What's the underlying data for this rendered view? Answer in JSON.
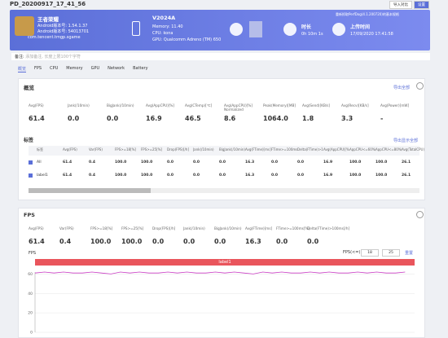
{
  "window": {
    "title": "PD_20200917_17_41_56",
    "buttons": [
      "导入对比",
      "设置"
    ]
  },
  "header": {
    "app_name": "王者荣耀",
    "app_version": "Android版本号: 1.54.1.37",
    "app_code": "Android版本号: 54013701",
    "package": "com.tencent.tmgp.sgame",
    "device": "V2024A",
    "memory": "Memory: 11.40",
    "cpu": "CPU: kona",
    "gpu": "GPU: Qualcomm Adreno (TM) 650",
    "duration_label": "时长",
    "duration": "0h 10m 1s",
    "upload_label": "上传时间",
    "upload_time": "17/09/2020 17:41:58",
    "note_top": "重新抓取PerfDog(4.1.200720)的基本规格"
  },
  "note": {
    "label": "备注:",
    "placeholder": "添加备注, 长度上限100个字符"
  },
  "tabs": [
    "概览",
    "FPS",
    "CPU",
    "Memory",
    "GPU",
    "Network",
    "Battery"
  ],
  "overview": {
    "title": "概览",
    "export": "导出全部",
    "metrics": [
      {
        "label": "Avg(FPS)",
        "value": "61.4"
      },
      {
        "label": "Jank(/10min)",
        "value": "0.0"
      },
      {
        "label": "BigJank(/10min)",
        "value": "0.0"
      },
      {
        "label": "Avg(AppCPU)[%]",
        "value": "16.9"
      },
      {
        "label": "Avg(CTemp)[℃]",
        "value": "46.5"
      },
      {
        "label": "Avg(AppCPU)[%] Normalized",
        "value": "8.6"
      },
      {
        "label": "Peak(Memory)[MB]",
        "value": "1064.0"
      },
      {
        "label": "Avg(Send)[KB/s]",
        "value": "1.8"
      },
      {
        "label": "Avg(Recv)[KB/s]",
        "value": "3.3"
      },
      {
        "label": "Avg(Power)[mW]",
        "value": "-"
      }
    ],
    "labels_title": "标签",
    "labels_link": "导出显示全部",
    "table": {
      "headers": [
        "标签",
        "Avg(FPS)",
        "Var(FPS)",
        "FPS>=18[%]",
        "FPS>=25[%]",
        "Drop(FPS)[/h]",
        "Jank(/10min)",
        "BigJank(/10min)",
        "Avg(FTime)[ms]",
        "FTime>=100ms[%]",
        "Delta(FTime)>100ms[/h]",
        "Avg(AppCPU)[%]",
        "AppCPU<=60%[%]",
        "AppCPU<=80%[%]",
        "Avg(TotalCPU)"
      ],
      "rows": [
        [
          "All",
          "61.4",
          "0.4",
          "100.0",
          "100.0",
          "0.0",
          "0.0",
          "0.0",
          "16.3",
          "0.0",
          "0.0",
          "16.9",
          "100.0",
          "100.0",
          "26.1"
        ],
        [
          "label1",
          "61.4",
          "0.4",
          "100.0",
          "100.0",
          "0.0",
          "0.0",
          "0.0",
          "16.3",
          "0.0",
          "0.0",
          "16.9",
          "100.0",
          "100.0",
          "26.1"
        ]
      ]
    }
  },
  "fps": {
    "title": "FPS",
    "metrics": [
      {
        "label": "Avg(FPS)",
        "value": "61.4"
      },
      {
        "label": "Var(FPS)",
        "value": "0.4"
      },
      {
        "label": "FPS>=18[%]",
        "value": "100.0"
      },
      {
        "label": "FPS>=25[%]",
        "value": "100.0"
      },
      {
        "label": "Drop(FPS)[/h]",
        "value": "0.0"
      },
      {
        "label": "Jank(/10min)",
        "value": "0.0"
      },
      {
        "label": "BigJank(/10min)",
        "value": "0.0"
      },
      {
        "label": "Avg(FTime)[ms]",
        "value": "16.3"
      },
      {
        "label": "FTime>=100ms[%]",
        "value": "0.0"
      },
      {
        "label": "Delta(FTime)>100ms[/h]",
        "value": "0.0"
      }
    ],
    "controls": {
      "label": "FPS(<=)",
      "v1": "18",
      "v2": "25",
      "reset": "重置"
    },
    "chart_data": {
      "type": "line",
      "y_label": "FPS",
      "band_label": "label1",
      "x": [
        0,
        15,
        30,
        45,
        60,
        75,
        90,
        105,
        120,
        135,
        150,
        165,
        180,
        195,
        210,
        225,
        240,
        255,
        270,
        285,
        300,
        315,
        330,
        345,
        360,
        375,
        390,
        405,
        420,
        435,
        450,
        465,
        480,
        495,
        510,
        525,
        540,
        555,
        570,
        585
      ],
      "series": [
        {
          "name": "FPS",
          "color": "#c93cc4",
          "values": [
            61,
            62,
            61,
            62,
            61,
            61,
            62,
            61,
            60,
            62,
            61,
            62,
            61,
            61,
            62,
            61,
            62,
            61,
            61,
            62,
            61,
            62,
            61,
            60,
            62,
            61,
            62,
            61,
            61,
            62,
            61,
            62,
            61,
            61,
            62,
            61,
            62,
            61,
            61,
            62
          ]
        }
      ],
      "xlim": [
        0,
        600
      ],
      "ylim": [
        0,
        62
      ],
      "yticks": [
        0,
        20,
        40,
        60
      ],
      "grid": true
    }
  }
}
